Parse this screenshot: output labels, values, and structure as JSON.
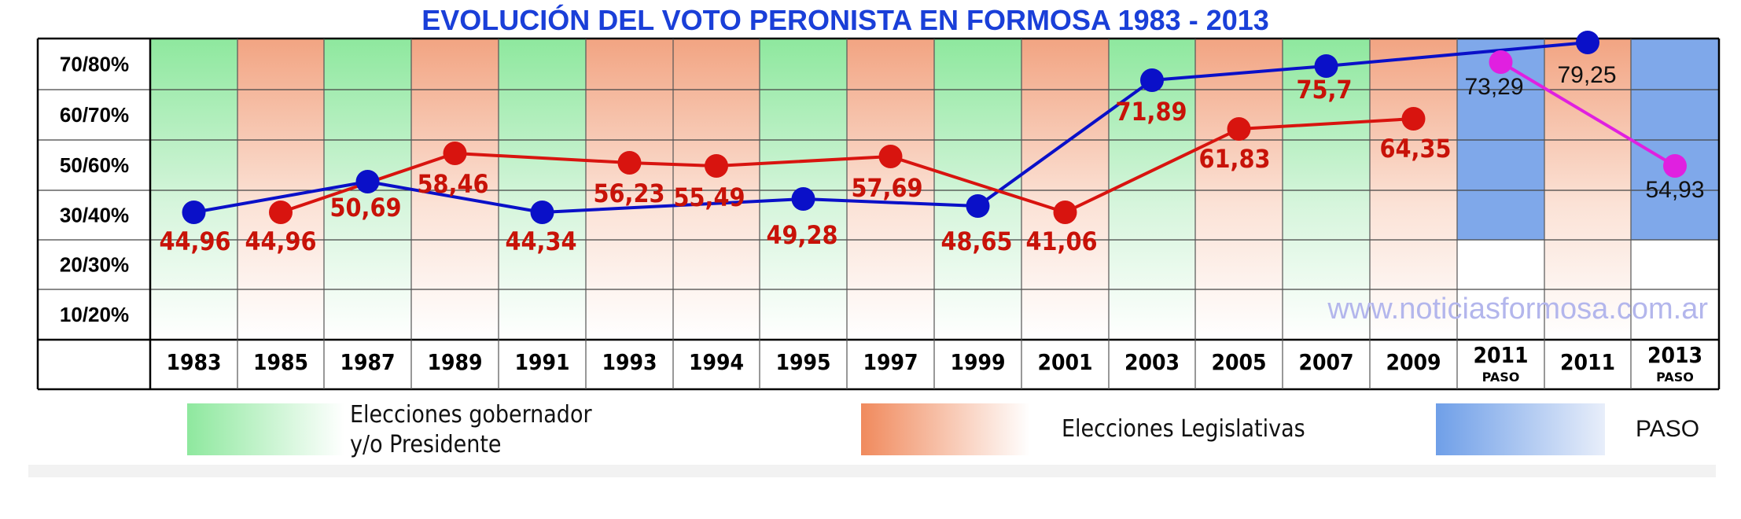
{
  "chart_data": {
    "type": "line",
    "title": "EVOLUCIÓN DEL VOTO PERONISTA EN FORMOSA 1983 - 2013",
    "y_tick_labels": [
      "70/80%",
      "60/70%",
      "50/60%",
      "30/40%",
      "20/30%",
      "10/20%"
    ],
    "categories": [
      {
        "year": "1983",
        "sub": "",
        "election": "gobernador"
      },
      {
        "year": "1985",
        "sub": "",
        "election": "legislativa"
      },
      {
        "year": "1987",
        "sub": "",
        "election": "gobernador"
      },
      {
        "year": "1989",
        "sub": "",
        "election": "legislativa"
      },
      {
        "year": "1991",
        "sub": "",
        "election": "gobernador"
      },
      {
        "year": "1993",
        "sub": "",
        "election": "legislativa"
      },
      {
        "year": "1994",
        "sub": "",
        "election": "legislativa"
      },
      {
        "year": "1995",
        "sub": "",
        "election": "gobernador"
      },
      {
        "year": "1997",
        "sub": "",
        "election": "legislativa"
      },
      {
        "year": "1999",
        "sub": "",
        "election": "gobernador"
      },
      {
        "year": "2001",
        "sub": "",
        "election": "legislativa"
      },
      {
        "year": "2003",
        "sub": "",
        "election": "gobernador"
      },
      {
        "year": "2005",
        "sub": "",
        "election": "legislativa"
      },
      {
        "year": "2007",
        "sub": "",
        "election": "gobernador"
      },
      {
        "year": "2009",
        "sub": "",
        "election": "legislativa"
      },
      {
        "year": "2011",
        "sub": "PASO",
        "election": "paso"
      },
      {
        "year": "2011",
        "sub": "",
        "election": "legislativa"
      },
      {
        "year": "2013",
        "sub": "PASO",
        "election": "paso"
      }
    ],
    "series": [
      {
        "color": "#0a10c8",
        "style": "sans",
        "points": [
          {
            "cat": 0,
            "label": "44,96"
          },
          {
            "cat": 2,
            "label": "50,69"
          },
          {
            "cat": 4,
            "label": "44,34"
          },
          {
            "cat": 7,
            "label": "49,28"
          },
          {
            "cat": 9,
            "label": "48,65"
          },
          {
            "cat": 11,
            "label": "71,89"
          },
          {
            "cat": 13,
            "label": "75,7"
          },
          {
            "cat": 16,
            "label": "79,25"
          }
        ]
      },
      {
        "color": "#d8140f",
        "style": "cond",
        "points": [
          {
            "cat": 1,
            "label": "44,96"
          },
          {
            "cat": 3,
            "label": "58,46"
          },
          {
            "cat": 5,
            "label": "56,23"
          },
          {
            "cat": 6,
            "label": "55,49"
          },
          {
            "cat": 8,
            "label": "57,69"
          },
          {
            "cat": 10,
            "label": "41,06"
          },
          {
            "cat": 12,
            "label": "61,83"
          },
          {
            "cat": 14,
            "label": "64,35"
          }
        ]
      },
      {
        "color": "#e020e0",
        "style": "sans",
        "points": [
          {
            "cat": 15,
            "label": "73,29"
          },
          {
            "cat": 17,
            "label": "54,93"
          }
        ]
      }
    ],
    "legend": [
      {
        "key": "gobernador",
        "label_lines": [
          "Elecciones gobernador",
          "y/o Presidente"
        ]
      },
      {
        "key": "legislativa",
        "label_lines": [
          "Elecciones Legislativas"
        ]
      },
      {
        "key": "paso",
        "label_lines": [
          "PASO"
        ]
      }
    ],
    "watermark": "www.noticiasformosa.com.ar",
    "colors": {
      "gobernador": "#8ee89e",
      "legislativa": "#f08a5d",
      "paso": "#6f9fe8",
      "title": "#1a3fd8",
      "watermark": "#b3b6ec"
    }
  }
}
